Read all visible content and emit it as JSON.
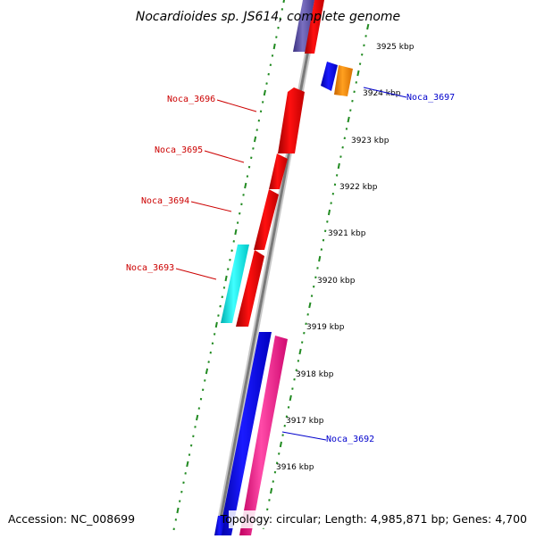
{
  "title": "Nocardioides sp. JS614, complete genome",
  "accession_text": "Accession: NC_008699",
  "summary_text": "Topology: circular; Length: 4,985,871 bp; Genes: 4,700",
  "colors": {
    "background": "#ffffff",
    "backbone_dark": "#7a7a7a",
    "backbone_light": "#c8c8c8",
    "tick_green": "#228b22",
    "label_red": "#cc0000",
    "label_blue": "#0000cc",
    "gene_red": "#ff0000",
    "gene_blue": "#0000ff",
    "gene_cyan": "#00ffff",
    "gene_pink": "#ff1493",
    "gene_orange": "#ff8c00",
    "gene_slate": "#5a4fa0"
  },
  "scale_labels": [
    "3925 kbp",
    "3924 kbp",
    "3923 kbp",
    "3922 kbp",
    "3921 kbp",
    "3920 kbp",
    "3919 kbp",
    "3918 kbp",
    "3917 kbp",
    "3916 kbp"
  ],
  "gene_labels": [
    {
      "id": "noca_3697",
      "text": "Noca_3697",
      "color": "blue"
    },
    {
      "id": "noca_3696",
      "text": "Noca_3696",
      "color": "red"
    },
    {
      "id": "noca_3695",
      "text": "Noca_3695",
      "color": "red"
    },
    {
      "id": "noca_3694",
      "text": "Noca_3694",
      "color": "red"
    },
    {
      "id": "noca_3693",
      "text": "Noca_3693",
      "color": "red"
    },
    {
      "id": "noca_3692",
      "text": "Noca_3692",
      "color": "blue"
    }
  ]
}
